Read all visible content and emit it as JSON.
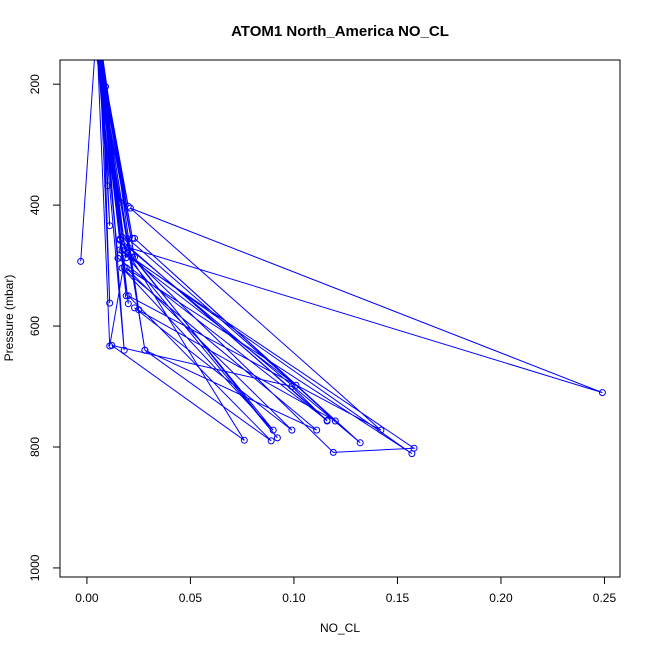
{
  "chart_data": {
    "type": "line",
    "title": "ATOM1 North_America NO_CL",
    "xlabel": "NO_CL",
    "ylabel": "Pressure (mbar)",
    "xlim": [
      -0.013,
      0.2575
    ],
    "ylim": [
      1015,
      160
    ],
    "y_reversed": true,
    "x_ticks": [
      0,
      0.05,
      0.1,
      0.15,
      0.2,
      0.25
    ],
    "x_tick_labels": [
      "0.00",
      "0.05",
      "0.10",
      "0.15",
      "0.20",
      "0.25"
    ],
    "y_ticks": [
      200,
      400,
      600,
      800,
      1000
    ],
    "y_tick_labels": [
      "200",
      "400",
      "600",
      "800",
      "1000"
    ],
    "series_color": "#0000ff",
    "marker": "open-circle",
    "x": [
      0.005,
      0.009,
      0.004,
      0.016,
      0.005,
      0.01,
      0.005,
      0.02,
      0.006,
      0.022,
      0.005,
      0.017,
      0.007,
      0.011,
      0.006,
      0.019,
      0.005,
      0.019,
      0.007,
      0.011,
      0.006,
      0.02,
      0.005,
      0.025,
      0.007,
      0.018,
      0.005,
      0.028,
      0.004,
      -0.003,
      0.004,
      0.023,
      0.005,
      0.018,
      0.006,
      0.015,
      0.005,
      0.011,
      0.02,
      0.101,
      0.016,
      0.158,
      0.119,
      0.022,
      0.09,
      0.017,
      0.111,
      0.028,
      0.089,
      0.02,
      0.142,
      0.021,
      0.249,
      0.02,
      0.132,
      0.023,
      0.12,
      0.023,
      0.099,
      0.019,
      0.157,
      0.017,
      0.092,
      0.016,
      0.076,
      0.012,
      0.099,
      0.116,
      0.016,
      0.116,
      0.015
    ],
    "y": [
      140,
      204,
      140,
      395,
      140,
      368,
      140,
      402,
      140,
      455,
      140,
      453,
      140,
      434,
      140,
      487,
      140,
      550,
      140,
      562,
      140,
      563,
      140,
      573,
      140,
      640,
      140,
      640,
      140,
      493,
      140,
      486,
      140,
      503,
      140,
      488,
      140,
      633,
      456,
      698,
      474,
      802,
      809,
      486,
      772,
      504,
      772,
      640,
      790,
      550,
      772,
      405,
      710,
      470,
      793,
      455,
      757,
      570,
      772,
      504,
      811,
      475,
      785,
      458,
      789,
      632,
      700,
      757,
      456,
      756,
      488
    ]
  }
}
